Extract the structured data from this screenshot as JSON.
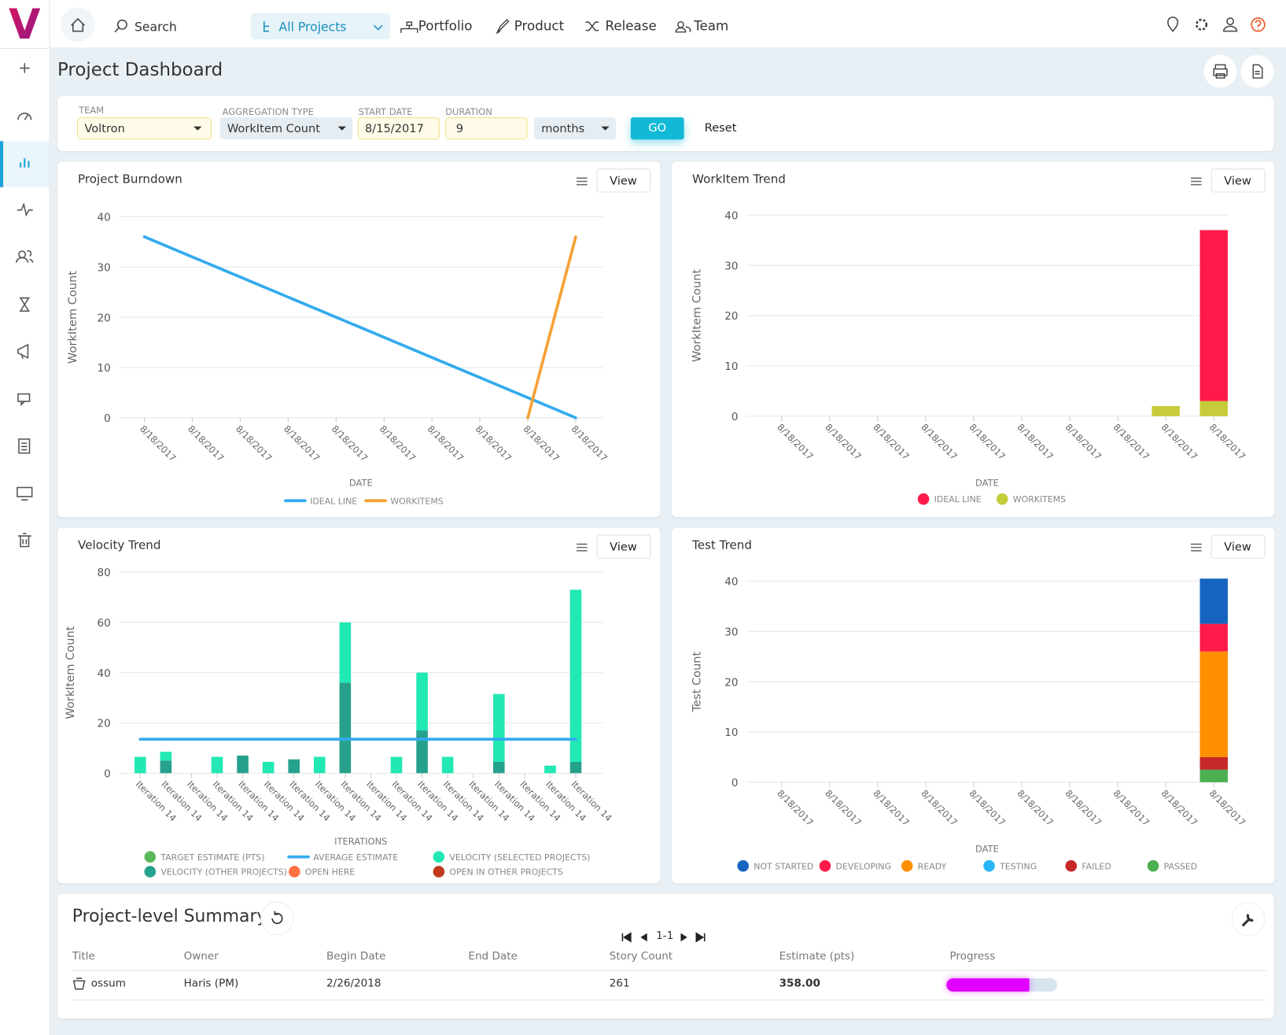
{
  "nav": {
    "logo": "V",
    "search": "Search",
    "project_selector": "All Projects",
    "menu": [
      "Portfolio",
      "Product",
      "Release",
      "Team"
    ]
  },
  "page_title": "Project Dashboard",
  "filters": {
    "fields": [
      {
        "label": "TEAM",
        "value": "Voltron"
      },
      {
        "label": "AGGREGATION TYPE",
        "value": "WorkItem Count"
      },
      {
        "label": "START DATE",
        "value": "8/15/2017"
      },
      {
        "label": "DURATION",
        "value": "9"
      }
    ],
    "unit": "months",
    "go": "GO",
    "reset": "Reset"
  },
  "chart_data": [
    {
      "type": "line",
      "title": "Project Burndown",
      "button": "View",
      "y_label": "WorkItem Count",
      "x_label": "DATE",
      "categories": [
        "8/18/2017",
        "8/18/2017",
        "8/18/2017",
        "8/18/2017",
        "8/18/2017",
        "8/18/2017",
        "8/18/2017",
        "8/18/2017",
        "8/18/2017",
        "8/18/2017"
      ],
      "ylim": [
        0,
        40
      ],
      "yticks": [
        0,
        10,
        20,
        30,
        40
      ],
      "grid": true,
      "legend": "bottom",
      "series": [
        {
          "name": "IDEAL LINE",
          "color": "#33aaee",
          "values": [
            36,
            32,
            28,
            24,
            20,
            16,
            12,
            8,
            4,
            0
          ]
        },
        {
          "name": "WORKITEMS",
          "color": "#f7a035",
          "values": [
            null,
            null,
            null,
            null,
            null,
            null,
            null,
            null,
            0,
            36
          ]
        }
      ]
    },
    {
      "type": "bar",
      "stacked": true,
      "title": "WorkItem Trend",
      "button": "View",
      "y_label": "WorkItem Count",
      "x_label": "DATE",
      "categories": [
        "8/18/2017",
        "8/18/2017",
        "8/18/2017",
        "8/18/2017",
        "8/18/2017",
        "8/18/2017",
        "8/18/2017",
        "8/18/2017",
        "8/18/2017",
        "8/18/2017"
      ],
      "ylim": [
        0,
        40
      ],
      "yticks": [
        0,
        10,
        20,
        30,
        40
      ],
      "grid": true,
      "legend": "bottom",
      "series": [
        {
          "name": "IDEAL LINE",
          "color": "#ff1a4a",
          "values": [
            0,
            0,
            0,
            0,
            0,
            0,
            0,
            0,
            0,
            34
          ]
        },
        {
          "name": "WORKITEMS",
          "color": "#c5cc38",
          "values": [
            0,
            0,
            0,
            0,
            0,
            0,
            0,
            0,
            2,
            3
          ]
        }
      ]
    },
    {
      "type": "bar",
      "stacked": true,
      "title": "Velocity Trend",
      "button": "View",
      "y_label": "WorkItem Count",
      "x_label": "ITERATIONS",
      "categories": [
        "Iteration 14",
        "Iteration 14",
        "Iteration 14",
        "Iteration 14",
        "Iteration 14",
        "Iteration 14",
        "Iteration 14",
        "Iteration 14",
        "Iteration 14",
        "Iteration 14",
        "Iteration 14",
        "Iteration 14",
        "Iteration 14",
        "Iteration 14",
        "Iteration 14",
        "Iteration 14",
        "Iteration 14",
        "Iteration 14"
      ],
      "ylim": [
        0,
        80
      ],
      "yticks": [
        0,
        20,
        40,
        60,
        80
      ],
      "grid": true,
      "legend": "bottom",
      "series": [
        {
          "name": "TARGET ESTIMATE (PTS)",
          "color": "#5cb85c",
          "values": [
            null,
            null,
            null,
            null,
            null,
            null,
            null,
            null,
            null,
            null,
            null,
            null,
            null,
            null,
            null,
            null,
            null,
            null
          ]
        },
        {
          "name": "AVERAGE ESTIMATE",
          "color": "#33aaee",
          "type": "line",
          "values": [
            13.5,
            13.5,
            13.5,
            13.5,
            13.5,
            13.5,
            13.5,
            13.5,
            13.5,
            13.5,
            13.5,
            13.5,
            13.5,
            13.5,
            13.5,
            13.5,
            13.5,
            13.5
          ]
        },
        {
          "name": "VELOCITY (SELECTED PROJECTS)",
          "color": "#22e8b4",
          "values": [
            6.5,
            3.5,
            null,
            6.5,
            null,
            4.5,
            null,
            6.5,
            24,
            null,
            6.5,
            23,
            6.5,
            null,
            27,
            null,
            3,
            68.5
          ]
        },
        {
          "name": "VELOCITY (OTHER PROJECTS)",
          "color": "#26a18c",
          "values": [
            null,
            5,
            null,
            null,
            7,
            null,
            5.5,
            null,
            36,
            null,
            null,
            17,
            null,
            null,
            4.5,
            null,
            null,
            4.5
          ]
        },
        {
          "name": "OPEN HERE",
          "color": "#ff7043",
          "values": [
            null,
            null,
            null,
            null,
            null,
            null,
            null,
            null,
            null,
            null,
            null,
            null,
            null,
            null,
            null,
            null,
            null,
            null
          ]
        },
        {
          "name": "OPEN IN OTHER PROJECTS",
          "color": "#c0391b",
          "values": [
            null,
            null,
            null,
            null,
            null,
            null,
            null,
            null,
            null,
            null,
            null,
            null,
            null,
            null,
            null,
            null,
            null,
            null
          ]
        }
      ]
    },
    {
      "type": "bar",
      "stacked": true,
      "title": "Test Trend",
      "button": "View",
      "y_label": "Test Count",
      "x_label": "DATE",
      "categories": [
        "8/18/2017",
        "8/18/2017",
        "8/18/2017",
        "8/18/2017",
        "8/18/2017",
        "8/18/2017",
        "8/18/2017",
        "8/18/2017",
        "8/18/2017",
        "8/18/2017"
      ],
      "ylim": [
        0,
        40
      ],
      "yticks": [
        0,
        10,
        20,
        30,
        40
      ],
      "grid": true,
      "legend": "bottom",
      "series": [
        {
          "name": "NOT STARTED",
          "color": "#1565c0",
          "values": [
            0,
            0,
            0,
            0,
            0,
            0,
            0,
            0,
            0,
            9
          ]
        },
        {
          "name": "DEVELOPING",
          "color": "#ff1a4a",
          "values": [
            0,
            0,
            0,
            0,
            0,
            0,
            0,
            0,
            0,
            5.5
          ]
        },
        {
          "name": "READY",
          "color": "#ff8f00",
          "values": [
            0,
            0,
            0,
            0,
            0,
            0,
            0,
            0,
            0,
            21
          ]
        },
        {
          "name": "TESTING",
          "color": "#29b6f6",
          "values": [
            0,
            0,
            0,
            0,
            0,
            0,
            0,
            0,
            0,
            0
          ]
        },
        {
          "name": "FAILED",
          "color": "#c62828",
          "values": [
            0,
            0,
            0,
            0,
            0,
            0,
            0,
            0,
            0,
            2.5
          ]
        },
        {
          "name": "PASSED",
          "color": "#4caf50",
          "values": [
            0,
            0,
            0,
            0,
            0,
            0,
            0,
            0,
            0,
            2.5
          ]
        }
      ]
    }
  ],
  "summary": {
    "title": "Project-level Summary",
    "pager": "1-1",
    "progress_range": [
      0,
      100
    ],
    "table": {
      "columns": [
        "Title",
        "Owner",
        "Begin Date",
        "End Date",
        "Story Count",
        "Estimate (pts)",
        "Progress"
      ],
      "rows": [
        [
          "ossum",
          "Haris (PM)",
          "2/26/2018",
          null,
          261,
          "358.00",
          75
        ]
      ]
    }
  }
}
